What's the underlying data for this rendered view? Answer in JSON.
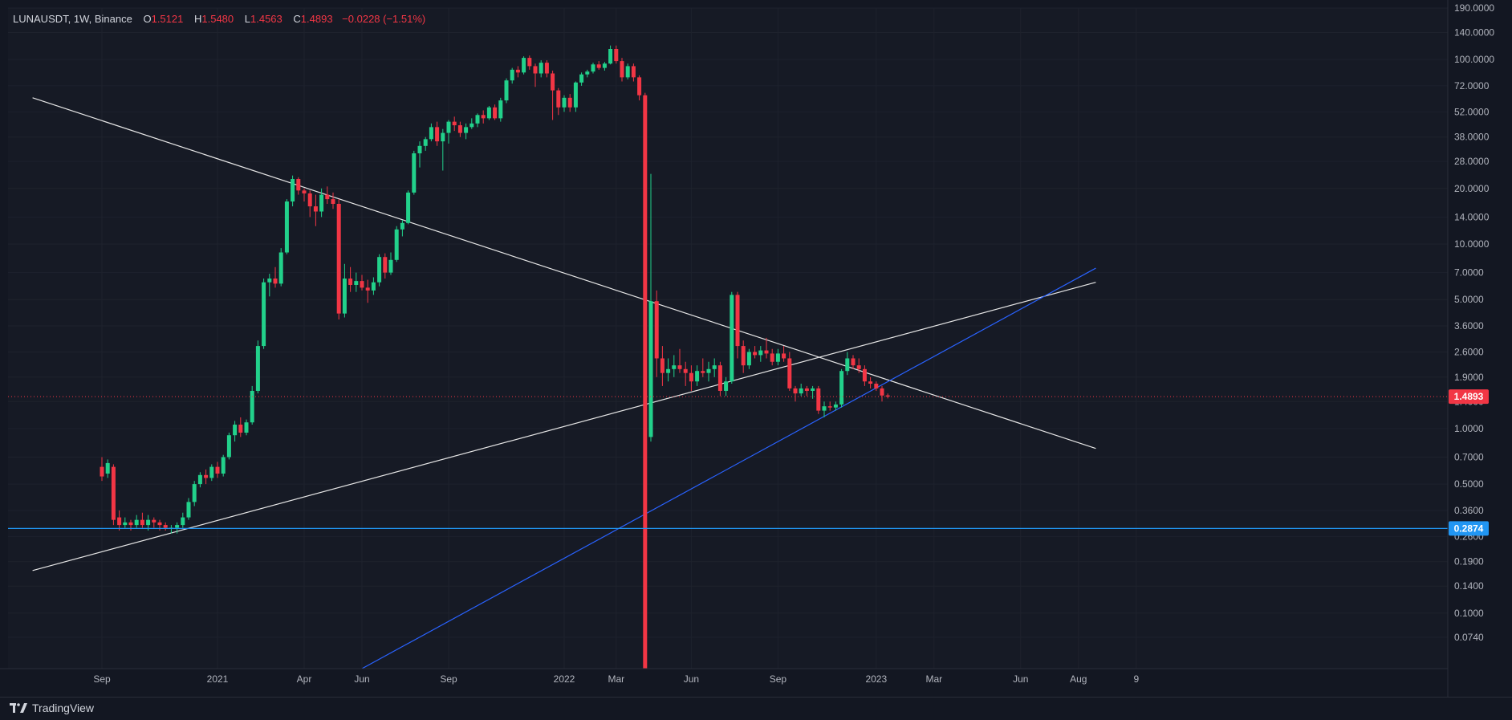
{
  "header": {
    "symbol": "LUNAUSDT, 1W, Binance",
    "open_label": "O",
    "open": "1.5121",
    "high_label": "H",
    "high": "1.5480",
    "low_label": "L",
    "low": "1.4563",
    "close_label": "C",
    "close": "1.4893",
    "change": "−0.0228 (−1.51%)"
  },
  "footer": {
    "brand": "TradingView",
    "logo_icon": "tradingview-logo-icon"
  },
  "colors": {
    "background": "#131722",
    "grid": "#1e222d",
    "up": "#26a69a",
    "up_bright": "#22d18b",
    "down": "#f23645",
    "trend_white": "#e6e6e6",
    "trend_blue": "#2962ff",
    "hline_blue": "#2196f3",
    "axis_text": "#b2b5be"
  },
  "price_tags": {
    "last_price": "1.4893",
    "horizontal_line": "0.2874"
  },
  "chart_data": {
    "type": "candlestick",
    "symbol": "LUNAUSDT",
    "timeframe": "1W",
    "exchange": "Binance",
    "y_scale": "log",
    "ylim": [
      0.05,
      190
    ],
    "y_ticks": [
      "190.0000",
      "140.0000",
      "100.0000",
      "72.0000",
      "52.0000",
      "38.0000",
      "28.0000",
      "20.0000",
      "14.0000",
      "10.0000",
      "7.0000",
      "5.0000",
      "3.6000",
      "2.6000",
      "1.9000",
      "1.4000",
      "1.0000",
      "0.7000",
      "0.5000",
      "0.3600",
      "0.2600",
      "0.1900",
      "0.1400",
      "0.1000",
      "0.0740"
    ],
    "x_ticks": [
      "Sep",
      "2021",
      "Apr",
      "Jun",
      "Sep",
      "2022",
      "Mar",
      "Jun",
      "Sep",
      "2023",
      "Mar",
      "Jun",
      "Aug",
      "9"
    ],
    "candles": [
      {
        "o": 0.62,
        "h": 0.7,
        "l": 0.52,
        "c": 0.55
      },
      {
        "o": 0.57,
        "h": 0.68,
        "l": 0.54,
        "c": 0.65
      },
      {
        "o": 0.62,
        "h": 0.64,
        "l": 0.3,
        "c": 0.32
      },
      {
        "o": 0.33,
        "h": 0.36,
        "l": 0.28,
        "c": 0.3
      },
      {
        "o": 0.3,
        "h": 0.33,
        "l": 0.29,
        "c": 0.31
      },
      {
        "o": 0.31,
        "h": 0.32,
        "l": 0.28,
        "c": 0.3
      },
      {
        "o": 0.3,
        "h": 0.34,
        "l": 0.29,
        "c": 0.32
      },
      {
        "o": 0.32,
        "h": 0.35,
        "l": 0.29,
        "c": 0.3
      },
      {
        "o": 0.3,
        "h": 0.34,
        "l": 0.28,
        "c": 0.32
      },
      {
        "o": 0.32,
        "h": 0.33,
        "l": 0.29,
        "c": 0.31
      },
      {
        "o": 0.31,
        "h": 0.32,
        "l": 0.28,
        "c": 0.3
      },
      {
        "o": 0.3,
        "h": 0.31,
        "l": 0.28,
        "c": 0.29
      },
      {
        "o": 0.29,
        "h": 0.3,
        "l": 0.27,
        "c": 0.29
      },
      {
        "o": 0.29,
        "h": 0.31,
        "l": 0.27,
        "c": 0.3
      },
      {
        "o": 0.3,
        "h": 0.35,
        "l": 0.29,
        "c": 0.33
      },
      {
        "o": 0.33,
        "h": 0.42,
        "l": 0.32,
        "c": 0.4
      },
      {
        "o": 0.4,
        "h": 0.52,
        "l": 0.38,
        "c": 0.5
      },
      {
        "o": 0.5,
        "h": 0.58,
        "l": 0.48,
        "c": 0.56
      },
      {
        "o": 0.56,
        "h": 0.6,
        "l": 0.5,
        "c": 0.54
      },
      {
        "o": 0.54,
        "h": 0.64,
        "l": 0.52,
        "c": 0.62
      },
      {
        "o": 0.62,
        "h": 0.66,
        "l": 0.54,
        "c": 0.57
      },
      {
        "o": 0.57,
        "h": 0.72,
        "l": 0.55,
        "c": 0.7
      },
      {
        "o": 0.7,
        "h": 0.95,
        "l": 0.68,
        "c": 0.92
      },
      {
        "o": 0.92,
        "h": 1.1,
        "l": 0.85,
        "c": 1.05
      },
      {
        "o": 1.05,
        "h": 1.15,
        "l": 0.9,
        "c": 0.95
      },
      {
        "o": 0.95,
        "h": 1.12,
        "l": 0.92,
        "c": 1.08
      },
      {
        "o": 1.08,
        "h": 1.7,
        "l": 1.05,
        "c": 1.6
      },
      {
        "o": 1.6,
        "h": 3.0,
        "l": 1.55,
        "c": 2.8
      },
      {
        "o": 2.8,
        "h": 6.5,
        "l": 2.7,
        "c": 6.2
      },
      {
        "o": 6.2,
        "h": 6.9,
        "l": 5.2,
        "c": 6.5
      },
      {
        "o": 6.5,
        "h": 7.5,
        "l": 5.8,
        "c": 6.1
      },
      {
        "o": 6.1,
        "h": 9.5,
        "l": 5.9,
        "c": 9.0
      },
      {
        "o": 9.0,
        "h": 17.5,
        "l": 8.8,
        "c": 17.0
      },
      {
        "o": 17.0,
        "h": 23.5,
        "l": 16.0,
        "c": 22.5
      },
      {
        "o": 22.5,
        "h": 23.0,
        "l": 18.5,
        "c": 19.5
      },
      {
        "o": 19.5,
        "h": 20.0,
        "l": 17.0,
        "c": 18.8
      },
      {
        "o": 18.8,
        "h": 19.5,
        "l": 14.0,
        "c": 16.0
      },
      {
        "o": 16.0,
        "h": 18.5,
        "l": 12.5,
        "c": 15.0
      },
      {
        "o": 15.0,
        "h": 20.0,
        "l": 14.0,
        "c": 18.5
      },
      {
        "o": 18.5,
        "h": 20.5,
        "l": 16.5,
        "c": 17.5
      },
      {
        "o": 17.5,
        "h": 19.0,
        "l": 15.5,
        "c": 16.5
      },
      {
        "o": 16.5,
        "h": 17.5,
        "l": 3.9,
        "c": 4.2
      },
      {
        "o": 4.2,
        "h": 7.8,
        "l": 4.0,
        "c": 6.5
      },
      {
        "o": 6.5,
        "h": 7.5,
        "l": 5.5,
        "c": 6.0
      },
      {
        "o": 6.0,
        "h": 7.0,
        "l": 5.5,
        "c": 6.3
      },
      {
        "o": 6.3,
        "h": 6.8,
        "l": 5.6,
        "c": 5.8
      },
      {
        "o": 5.8,
        "h": 6.4,
        "l": 4.8,
        "c": 5.6
      },
      {
        "o": 5.6,
        "h": 6.6,
        "l": 5.3,
        "c": 6.2
      },
      {
        "o": 6.2,
        "h": 8.8,
        "l": 5.9,
        "c": 8.5
      },
      {
        "o": 8.5,
        "h": 8.9,
        "l": 6.5,
        "c": 7.0
      },
      {
        "o": 7.0,
        "h": 9.0,
        "l": 6.8,
        "c": 8.2
      },
      {
        "o": 8.2,
        "h": 12.5,
        "l": 8.0,
        "c": 12.0
      },
      {
        "o": 12.0,
        "h": 13.5,
        "l": 11.0,
        "c": 13.0
      },
      {
        "o": 13.0,
        "h": 19.5,
        "l": 12.8,
        "c": 19.0
      },
      {
        "o": 19.0,
        "h": 32.0,
        "l": 18.5,
        "c": 31.0
      },
      {
        "o": 31.0,
        "h": 36.0,
        "l": 26.0,
        "c": 34.0
      },
      {
        "o": 34.0,
        "h": 38.0,
        "l": 32.0,
        "c": 37.0
      },
      {
        "o": 37.0,
        "h": 45.0,
        "l": 36.0,
        "c": 43.0
      },
      {
        "o": 43.0,
        "h": 46.0,
        "l": 34.0,
        "c": 36.0
      },
      {
        "o": 36.0,
        "h": 42.0,
        "l": 25.0,
        "c": 40.0
      },
      {
        "o": 40.0,
        "h": 47.0,
        "l": 35.0,
        "c": 46.0
      },
      {
        "o": 46.0,
        "h": 49.0,
        "l": 41.0,
        "c": 44.0
      },
      {
        "o": 44.0,
        "h": 46.0,
        "l": 38.0,
        "c": 40.0
      },
      {
        "o": 40.0,
        "h": 45.0,
        "l": 37.0,
        "c": 43.0
      },
      {
        "o": 43.0,
        "h": 48.0,
        "l": 42.0,
        "c": 45.0
      },
      {
        "o": 45.0,
        "h": 51.0,
        "l": 43.0,
        "c": 50.0
      },
      {
        "o": 50.0,
        "h": 53.0,
        "l": 45.0,
        "c": 48.0
      },
      {
        "o": 48.0,
        "h": 56.0,
        "l": 47.0,
        "c": 55.0
      },
      {
        "o": 55.0,
        "h": 57.0,
        "l": 47.0,
        "c": 48.0
      },
      {
        "o": 48.0,
        "h": 62.0,
        "l": 46.0,
        "c": 60.0
      },
      {
        "o": 60.0,
        "h": 79.0,
        "l": 58.0,
        "c": 77.0
      },
      {
        "o": 77.0,
        "h": 90.0,
        "l": 74.0,
        "c": 88.0
      },
      {
        "o": 88.0,
        "h": 92.0,
        "l": 80.0,
        "c": 85.0
      },
      {
        "o": 85.0,
        "h": 104.0,
        "l": 83.0,
        "c": 102.0
      },
      {
        "o": 102.0,
        "h": 105.0,
        "l": 88.0,
        "c": 92.0
      },
      {
        "o": 92.0,
        "h": 95.0,
        "l": 71.0,
        "c": 84.0
      },
      {
        "o": 84.0,
        "h": 99.0,
        "l": 80.0,
        "c": 96.0
      },
      {
        "o": 96.0,
        "h": 99.0,
        "l": 80.0,
        "c": 84.0
      },
      {
        "o": 84.0,
        "h": 87.0,
        "l": 47.0,
        "c": 68.0
      },
      {
        "o": 68.0,
        "h": 70.0,
        "l": 50.0,
        "c": 55.0
      },
      {
        "o": 55.0,
        "h": 64.0,
        "l": 52.0,
        "c": 62.0
      },
      {
        "o": 62.0,
        "h": 65.0,
        "l": 52.0,
        "c": 55.0
      },
      {
        "o": 55.0,
        "h": 76.0,
        "l": 52.0,
        "c": 75.0
      },
      {
        "o": 75.0,
        "h": 85.0,
        "l": 72.0,
        "c": 83.0
      },
      {
        "o": 83.0,
        "h": 88.0,
        "l": 80.0,
        "c": 86.0
      },
      {
        "o": 86.0,
        "h": 96.0,
        "l": 84.0,
        "c": 94.0
      },
      {
        "o": 94.0,
        "h": 98.0,
        "l": 88.0,
        "c": 90.0
      },
      {
        "o": 90.0,
        "h": 97.0,
        "l": 87.0,
        "c": 95.0
      },
      {
        "o": 95.0,
        "h": 119.0,
        "l": 94.0,
        "c": 114.0
      },
      {
        "o": 114.0,
        "h": 119.0,
        "l": 95.0,
        "c": 98.0
      },
      {
        "o": 98.0,
        "h": 102.0,
        "l": 76.0,
        "c": 80.0
      },
      {
        "o": 80.0,
        "h": 95.0,
        "l": 78.0,
        "c": 92.0
      },
      {
        "o": 92.0,
        "h": 95.0,
        "l": 76.0,
        "c": 80.0
      },
      {
        "o": 80.0,
        "h": 82.0,
        "l": 60.0,
        "c": 64.0
      },
      {
        "o": 64.0,
        "h": 66.0,
        "l": 0.05,
        "c": 0.05
      },
      {
        "o": 0.9,
        "h": 24.0,
        "l": 0.85,
        "c": 4.9
      },
      {
        "o": 4.9,
        "h": 5.6,
        "l": 1.9,
        "c": 2.4
      },
      {
        "o": 2.4,
        "h": 2.8,
        "l": 1.7,
        "c": 2.0
      },
      {
        "o": 2.0,
        "h": 2.4,
        "l": 1.8,
        "c": 2.1
      },
      {
        "o": 2.1,
        "h": 2.5,
        "l": 1.9,
        "c": 2.2
      },
      {
        "o": 2.2,
        "h": 2.7,
        "l": 2.0,
        "c": 2.1
      },
      {
        "o": 2.1,
        "h": 2.3,
        "l": 1.7,
        "c": 2.0
      },
      {
        "o": 2.0,
        "h": 2.2,
        "l": 1.6,
        "c": 1.8
      },
      {
        "o": 1.8,
        "h": 2.2,
        "l": 1.7,
        "c": 2.05
      },
      {
        "o": 2.05,
        "h": 2.4,
        "l": 1.9,
        "c": 2.0
      },
      {
        "o": 2.0,
        "h": 2.3,
        "l": 1.8,
        "c": 2.1
      },
      {
        "o": 2.1,
        "h": 2.4,
        "l": 1.9,
        "c": 2.2
      },
      {
        "o": 2.2,
        "h": 2.3,
        "l": 1.5,
        "c": 1.6
      },
      {
        "o": 1.6,
        "h": 1.9,
        "l": 1.5,
        "c": 1.8
      },
      {
        "o": 1.8,
        "h": 5.5,
        "l": 1.75,
        "c": 5.3
      },
      {
        "o": 5.3,
        "h": 5.5,
        "l": 2.4,
        "c": 2.8
      },
      {
        "o": 2.8,
        "h": 3.0,
        "l": 2.0,
        "c": 2.2
      },
      {
        "o": 2.2,
        "h": 2.7,
        "l": 2.1,
        "c": 2.6
      },
      {
        "o": 2.6,
        "h": 2.8,
        "l": 2.4,
        "c": 2.5
      },
      {
        "o": 2.5,
        "h": 2.8,
        "l": 2.3,
        "c": 2.65
      },
      {
        "o": 2.65,
        "h": 3.1,
        "l": 2.4,
        "c": 2.55
      },
      {
        "o": 2.55,
        "h": 2.7,
        "l": 2.2,
        "c": 2.3
      },
      {
        "o": 2.3,
        "h": 2.7,
        "l": 2.2,
        "c": 2.55
      },
      {
        "o": 2.55,
        "h": 2.8,
        "l": 2.3,
        "c": 2.4
      },
      {
        "o": 2.4,
        "h": 2.6,
        "l": 1.6,
        "c": 1.65
      },
      {
        "o": 1.65,
        "h": 1.7,
        "l": 1.4,
        "c": 1.55
      },
      {
        "o": 1.55,
        "h": 1.75,
        "l": 1.5,
        "c": 1.65
      },
      {
        "o": 1.65,
        "h": 1.7,
        "l": 1.5,
        "c": 1.6
      },
      {
        "o": 1.6,
        "h": 1.7,
        "l": 1.45,
        "c": 1.65
      },
      {
        "o": 1.65,
        "h": 1.7,
        "l": 1.2,
        "c": 1.25
      },
      {
        "o": 1.25,
        "h": 1.4,
        "l": 1.15,
        "c": 1.32
      },
      {
        "o": 1.32,
        "h": 1.4,
        "l": 1.25,
        "c": 1.3
      },
      {
        "o": 1.3,
        "h": 1.4,
        "l": 1.25,
        "c": 1.35
      },
      {
        "o": 1.35,
        "h": 2.1,
        "l": 1.3,
        "c": 2.05
      },
      {
        "o": 2.05,
        "h": 2.6,
        "l": 1.95,
        "c": 2.4
      },
      {
        "o": 2.4,
        "h": 2.5,
        "l": 2.1,
        "c": 2.2
      },
      {
        "o": 2.2,
        "h": 2.4,
        "l": 2.0,
        "c": 2.1
      },
      {
        "o": 2.1,
        "h": 2.2,
        "l": 1.7,
        "c": 1.8
      },
      {
        "o": 1.8,
        "h": 1.9,
        "l": 1.65,
        "c": 1.75
      },
      {
        "o": 1.75,
        "h": 1.8,
        "l": 1.6,
        "c": 1.65
      },
      {
        "o": 1.65,
        "h": 1.7,
        "l": 1.4,
        "c": 1.51
      },
      {
        "o": 1.5121,
        "h": 1.548,
        "l": 1.4563,
        "c": 1.4893
      }
    ],
    "horizontal_line": 0.2874,
    "last_price": 1.4893,
    "trend_lines": [
      {
        "name": "white-descending-trendline",
        "color": "white",
        "from": {
          "bar": -12,
          "price": 62.0
        },
        "to": {
          "bar": 172,
          "price": 0.78
        }
      },
      {
        "name": "white-ascending-trendline",
        "color": "white",
        "from": {
          "bar": -12,
          "price": 0.17
        },
        "to": {
          "bar": 172,
          "price": 6.2
        }
      },
      {
        "name": "blue-ascending-trendline",
        "color": "blue",
        "from": {
          "bar": 45,
          "price": 0.05
        },
        "to": {
          "bar": 172,
          "price": 7.4
        }
      }
    ]
  }
}
